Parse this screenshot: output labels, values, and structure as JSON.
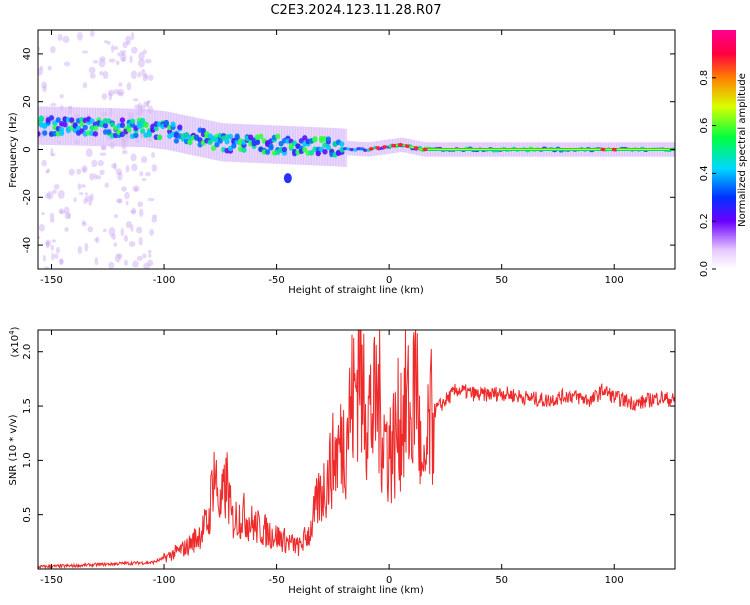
{
  "title": "C2E3.2024.123.11.28.R07",
  "colors": {
    "line": "#ee2a2a",
    "axis": "#000000"
  },
  "chart_data": [
    {
      "type": "heatmap",
      "xlabel": "Height of straight line (km)",
      "ylabel": "Frequency (Hz)",
      "xlim": [
        -156,
        127
      ],
      "ylim": [
        -50,
        50
      ],
      "xticks": [
        -150,
        -100,
        -50,
        0,
        50,
        100
      ],
      "yticks": [
        -40,
        -20,
        0,
        20,
        40
      ],
      "colorbar": {
        "label": "Normalized spectral amplitude",
        "range": [
          0.0,
          1.0
        ],
        "ticks": [
          "0.0",
          "0.2",
          "0.4",
          "0.6",
          "0.8"
        ]
      },
      "ridge": [
        {
          "x": -156,
          "y": 10
        },
        {
          "x": -110,
          "y": 9
        },
        {
          "x": -100,
          "y": 8
        },
        {
          "x": -75,
          "y": 3
        },
        {
          "x": -50,
          "y": 2
        },
        {
          "x": -25,
          "y": 1
        },
        {
          "x": -10,
          "y": 0
        },
        {
          "x": 5,
          "y": 2
        },
        {
          "x": 15,
          "y": 0
        },
        {
          "x": 50,
          "y": 0
        },
        {
          "x": 127,
          "y": 0
        }
      ]
    },
    {
      "type": "line",
      "xlabel": "Height of straight line (km)",
      "ylabel": "SNR (10 * v/v)",
      "yscale_label": "(x10",
      "yscale_exp": "4",
      "xlim": [
        -156,
        127
      ],
      "ylim": [
        0,
        2.2
      ],
      "xticks": [
        -150,
        -100,
        -50,
        0,
        50,
        100
      ],
      "yticks": [
        0.5,
        1.0,
        1.5,
        2.0
      ],
      "ytick_labels": [
        "0.5",
        "1.0",
        "1.5",
        "2.0"
      ],
      "series": [
        {
          "x": [
            -156,
            -140,
            -120,
            -105,
            -100,
            -95,
            -90,
            -85,
            -80,
            -78,
            -75,
            -72,
            -70,
            -65,
            -60,
            -55,
            -50,
            -45,
            -40,
            -35,
            -32,
            -28,
            -25,
            -20,
            -17,
            -15,
            -13,
            -12,
            -11,
            -10,
            -7,
            -5,
            -3,
            0,
            3,
            5,
            8,
            10,
            12,
            14,
            15,
            18,
            20,
            25,
            30,
            40,
            50,
            60,
            70,
            80,
            90,
            95,
            100,
            110,
            120,
            127
          ],
          "y": [
            0.02,
            0.03,
            0.05,
            0.06,
            0.1,
            0.15,
            0.2,
            0.3,
            0.45,
            0.95,
            0.55,
            0.8,
            0.45,
            0.5,
            0.4,
            0.35,
            0.3,
            0.25,
            0.2,
            0.35,
            0.6,
            0.8,
            1.0,
            1.2,
            1.5,
            1.6,
            2.2,
            1.4,
            1.8,
            1.5,
            1.4,
            1.6,
            1.3,
            1.1,
            1.2,
            1.4,
            1.5,
            1.3,
            1.9,
            1.0,
            0.7,
            1.3,
            1.45,
            1.55,
            1.65,
            1.6,
            1.62,
            1.58,
            1.55,
            1.6,
            1.55,
            1.65,
            1.58,
            1.52,
            1.58,
            1.55
          ]
        }
      ]
    }
  ]
}
